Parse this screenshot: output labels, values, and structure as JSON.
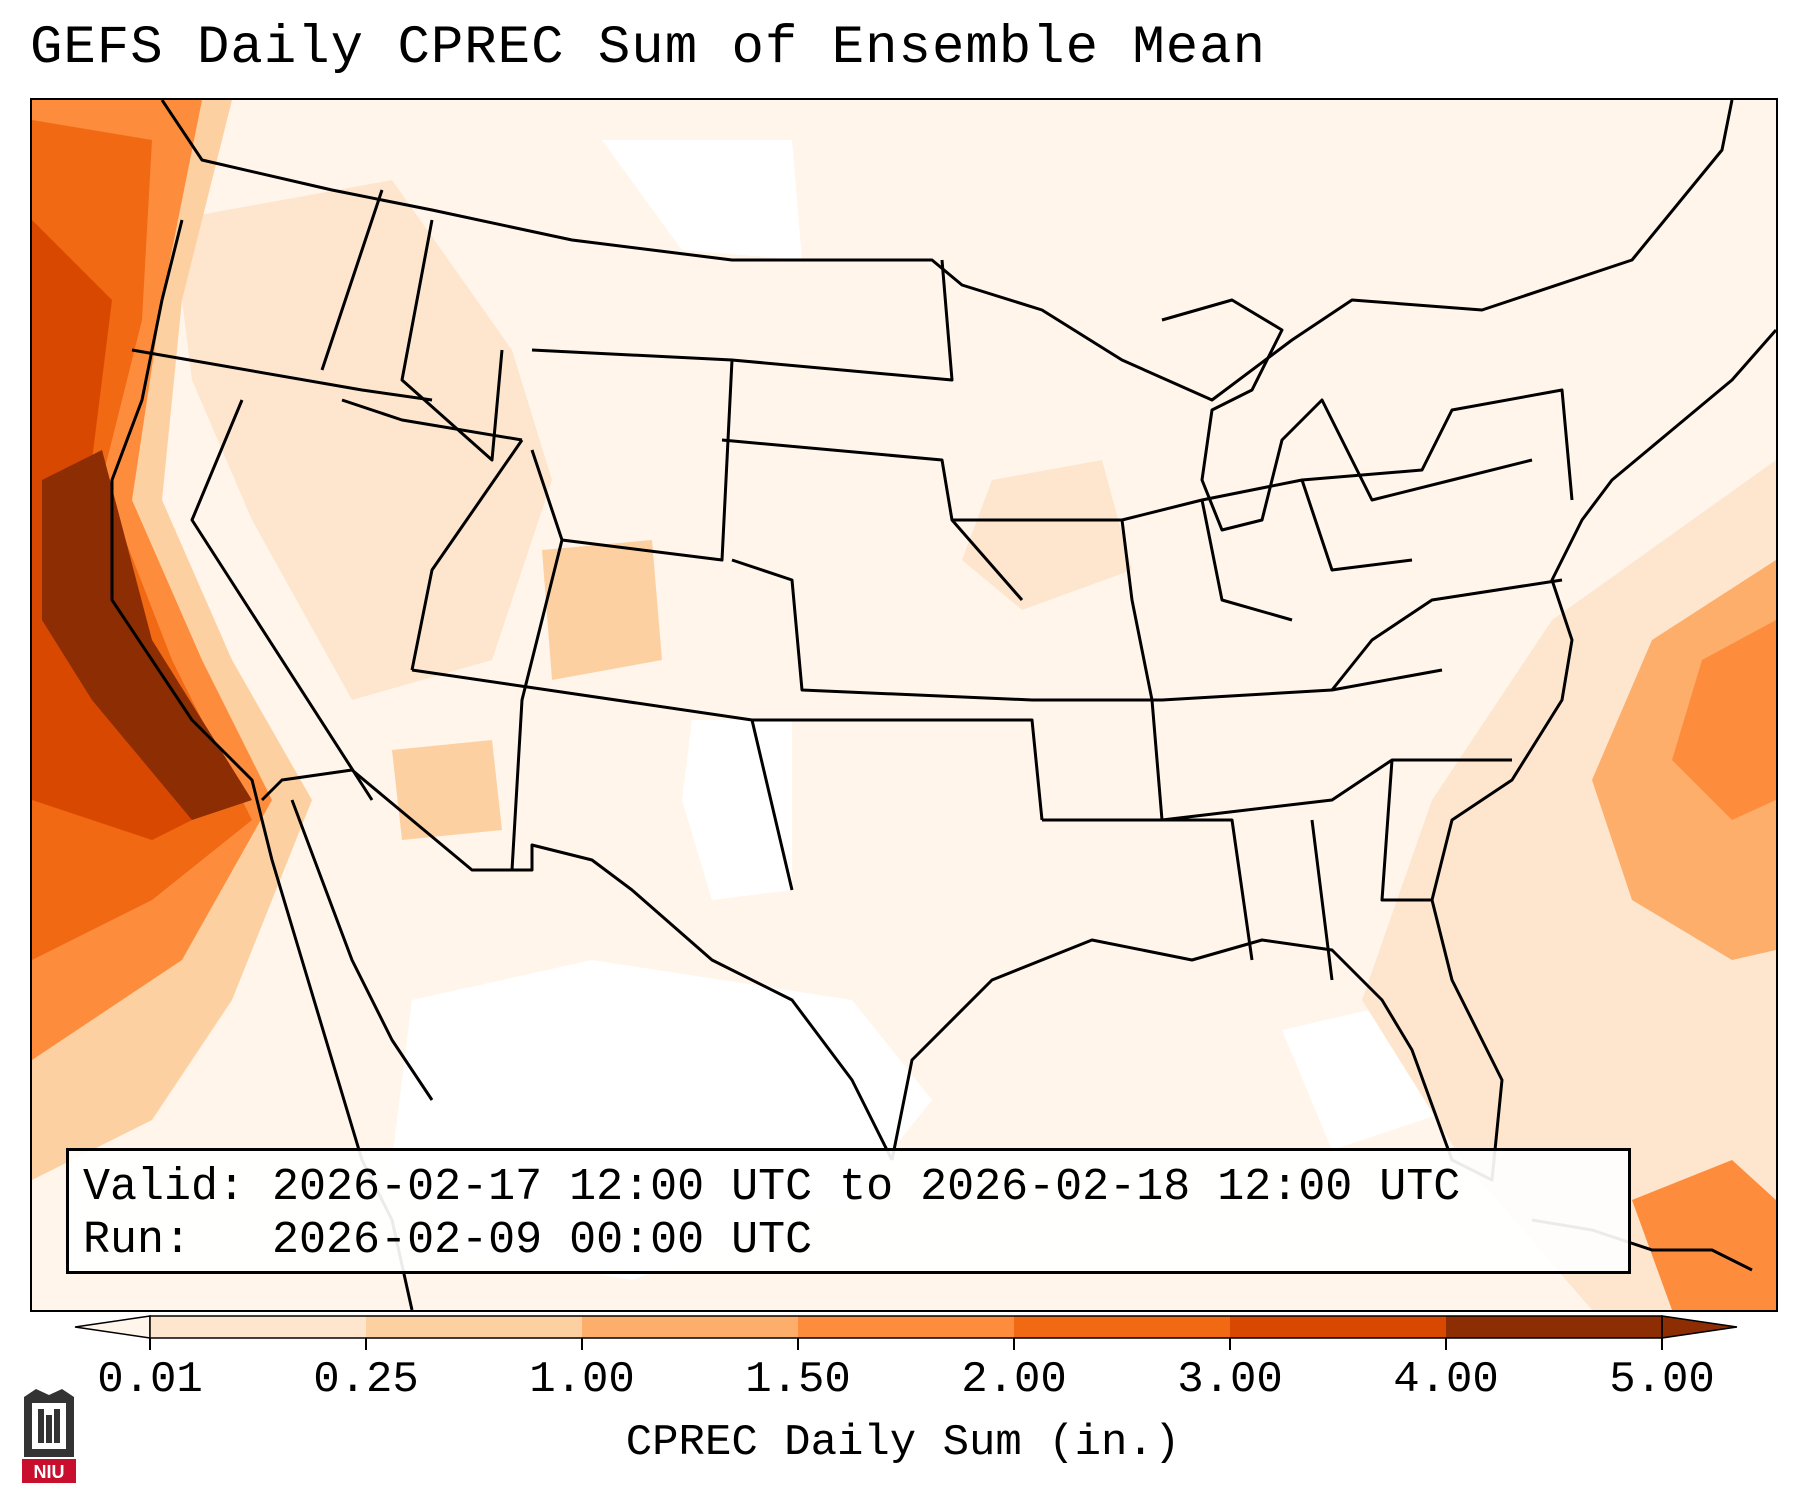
{
  "title": "GEFS Daily CPREC Sum of Ensemble Mean",
  "info": {
    "valid_label": "Valid:",
    "valid_text": "2026-02-17 12:00 UTC to 2026-02-18 12:00 UTC",
    "run_label": "Run:",
    "run_text": "2026-02-09 00:00 UTC"
  },
  "colorbar": {
    "label": "CPREC Daily Sum (in.)",
    "ticks": [
      "0.01",
      "0.25",
      "1.00",
      "1.50",
      "2.00",
      "3.00",
      "4.00",
      "5.00"
    ],
    "colors": [
      "#fff5eb",
      "#fee6ce",
      "#fdd0a2",
      "#fdae6b",
      "#fd8d3c",
      "#f16913",
      "#d94801",
      "#8c2d04"
    ],
    "extend": "both"
  },
  "logo": {
    "text": "NIU"
  },
  "map": {
    "region": "Contiguous United States, northern Mexico, western Atlantic",
    "field": "CPREC daily sum (in.)",
    "features": "state and country boundaries, coastlines"
  }
}
